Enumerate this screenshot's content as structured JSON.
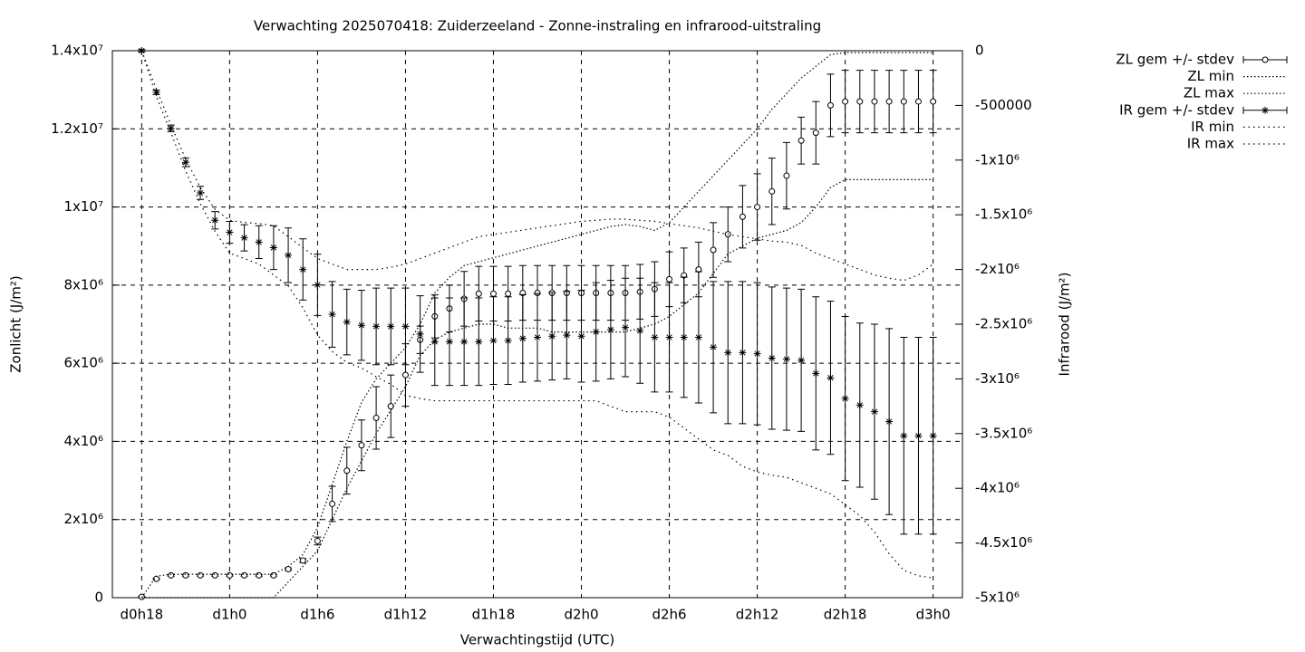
{
  "chart_data": {
    "type": "errorbar",
    "title": "Verwachting 2025070418: Zuiderzeeland - Zonne-instraling en infrarood-uitstraling",
    "x_label": "Verwachtingstijd (UTC)",
    "y_label": "Zonlicht (J/m²)",
    "y2_label": "Infrarood (J/m²)",
    "grid": true,
    "legend": "outside-right",
    "xlim": [
      16,
      74
    ],
    "xticks": [
      {
        "value": 18,
        "label": "d0h18"
      },
      {
        "value": 24,
        "label": "d1h0"
      },
      {
        "value": 30,
        "label": "d1h6"
      },
      {
        "value": 36,
        "label": "d1h12"
      },
      {
        "value": 42,
        "label": "d1h18"
      },
      {
        "value": 48,
        "label": "d2h0"
      },
      {
        "value": 54,
        "label": "d2h6"
      },
      {
        "value": 60,
        "label": "d2h12"
      },
      {
        "value": 66,
        "label": "d2h18"
      },
      {
        "value": 72,
        "label": "d3h0"
      }
    ],
    "ylim": [
      0,
      14000000
    ],
    "yticks": [
      0,
      {
        "value": 2000000,
        "label": "2x10⁶"
      },
      {
        "value": 4000000,
        "label": "4x10⁶"
      },
      {
        "value": 6000000,
        "label": "6x10⁶"
      },
      {
        "value": 8000000,
        "label": "8x10⁶"
      },
      {
        "value": 10000000,
        "label": "1x10⁷"
      },
      {
        "value": 12000000,
        "label": "1.2x10⁷"
      },
      {
        "value": 14000000,
        "label": "1.4x10⁷"
      }
    ],
    "y2lim": [
      -5000000,
      0
    ],
    "y2ticks": [
      0,
      -500000,
      {
        "value": -1000000,
        "label": "-1x10⁶"
      },
      {
        "value": -1500000,
        "label": "-1.5x10⁶"
      },
      {
        "value": -2000000,
        "label": "-2x10⁶"
      },
      {
        "value": -2500000,
        "label": "-2.5x10⁶"
      },
      {
        "value": -3000000,
        "label": "-3x10⁶"
      },
      {
        "value": -3500000,
        "label": "-3.5x10⁶"
      },
      {
        "value": -4000000,
        "label": "-4x10⁶"
      },
      {
        "value": -4500000,
        "label": "-4.5x10⁶"
      },
      {
        "value": -5000000,
        "label": "-5x10⁶"
      }
    ],
    "x": [
      18,
      19,
      20,
      21,
      22,
      23,
      24,
      25,
      26,
      27,
      28,
      29,
      30,
      31,
      32,
      33,
      34,
      35,
      36,
      37,
      38,
      39,
      40,
      41,
      42,
      43,
      44,
      45,
      46,
      47,
      48,
      49,
      50,
      51,
      52,
      53,
      54,
      55,
      56,
      57,
      58,
      59,
      60,
      61,
      62,
      63,
      64,
      65,
      66,
      67,
      68,
      69,
      70,
      71,
      72
    ],
    "series": [
      {
        "name": "ZL gem +/- stdev",
        "color": "#000000",
        "marker": "circle",
        "values": [
          20000,
          480000,
          570000,
          570000,
          570000,
          570000,
          570000,
          570000,
          570000,
          570000,
          730000,
          950000,
          1450000,
          2400000,
          3250000,
          3900000,
          4600000,
          4900000,
          5700000,
          6600000,
          7200000,
          7400000,
          7650000,
          7780000,
          7780000,
          7780000,
          7800000,
          7800000,
          7800000,
          7800000,
          7800000,
          7800000,
          7800000,
          7800000,
          7830000,
          7900000,
          8150000,
          8250000,
          8400000,
          8900000,
          9300000,
          9750000,
          10000000,
          10400000,
          10800000,
          11700000,
          11900000,
          12600000,
          12700000,
          12700000,
          12700000,
          12700000,
          12700000,
          12700000,
          12700000
        ],
        "errors": [
          10000,
          20000,
          20000,
          20000,
          20000,
          20000,
          20000,
          20000,
          20000,
          20000,
          30000,
          50000,
          100000,
          450000,
          600000,
          650000,
          800000,
          800000,
          800000,
          350000,
          550000,
          600000,
          700000,
          700000,
          700000,
          700000,
          700000,
          700000,
          700000,
          700000,
          700000,
          700000,
          700000,
          700000,
          700000,
          700000,
          700000,
          700000,
          700000,
          700000,
          700000,
          800000,
          850000,
          850000,
          850000,
          600000,
          800000,
          800000,
          800000,
          800000,
          800000,
          800000,
          800000,
          800000,
          800000
        ]
      },
      {
        "name": "ZL min",
        "color": "#000000",
        "values": [
          0,
          0,
          0,
          0,
          0,
          0,
          0,
          0,
          0,
          0,
          400000,
          800000,
          1200000,
          2000000,
          2800000,
          3500000,
          4200000,
          4800000,
          5400000,
          6200000,
          6600000,
          6800000,
          6900000,
          7000000,
          7000000,
          6900000,
          6900000,
          6900000,
          6800000,
          6800000,
          6800000,
          6800000,
          6800000,
          6800000,
          6900000,
          7000000,
          7200000,
          7500000,
          7800000,
          8300000,
          8800000,
          9000000,
          9200000,
          9300000,
          9400000,
          9600000,
          10000000,
          10500000,
          10700000,
          10700000,
          10700000,
          10700000,
          10700000,
          10700000,
          10700000
        ]
      },
      {
        "name": "ZL max",
        "color": "#000000",
        "values": [
          0,
          550000,
          600000,
          600000,
          600000,
          600000,
          600000,
          600000,
          600000,
          600000,
          800000,
          1100000,
          1800000,
          2900000,
          4000000,
          5000000,
          5600000,
          6000000,
          6400000,
          7000000,
          7800000,
          8200000,
          8500000,
          8600000,
          8700000,
          8800000,
          8900000,
          9000000,
          9100000,
          9200000,
          9300000,
          9400000,
          9500000,
          9550000,
          9500000,
          9400000,
          9600000,
          10000000,
          10400000,
          10800000,
          11200000,
          11600000,
          12000000,
          12500000,
          12900000,
          13300000,
          13600000,
          13900000,
          13950000,
          13950000,
          13950000,
          13950000,
          13950000,
          13950000,
          13950000
        ]
      },
      {
        "name": "IR gem +/- stdev",
        "color": "#000000",
        "marker": "asterisk",
        "axis": "y2",
        "values": [
          0,
          -380000,
          -710000,
          -1020000,
          -1300000,
          -1550000,
          -1660000,
          -1710000,
          -1750000,
          -1800000,
          -1870000,
          -2000000,
          -2140000,
          -2410000,
          -2480000,
          -2510000,
          -2520000,
          -2520000,
          -2520000,
          -2590000,
          -2660000,
          -2660000,
          -2660000,
          -2660000,
          -2650000,
          -2650000,
          -2630000,
          -2620000,
          -2610000,
          -2600000,
          -2610000,
          -2570000,
          -2550000,
          -2530000,
          -2560000,
          -2620000,
          -2620000,
          -2620000,
          -2620000,
          -2710000,
          -2760000,
          -2760000,
          -2770000,
          -2810000,
          -2820000,
          -2830000,
          -2950000,
          -2990000,
          -3180000,
          -3240000,
          -3300000,
          -3390000,
          -3520000,
          -3520000,
          -3520000
        ],
        "errors": [
          10000,
          20000,
          30000,
          40000,
          60000,
          80000,
          100000,
          120000,
          150000,
          200000,
          250000,
          280000,
          280000,
          300000,
          300000,
          320000,
          350000,
          350000,
          350000,
          350000,
          400000,
          400000,
          400000,
          400000,
          400000,
          400000,
          400000,
          400000,
          400000,
          400000,
          420000,
          450000,
          450000,
          450000,
          480000,
          500000,
          500000,
          550000,
          600000,
          600000,
          650000,
          650000,
          650000,
          650000,
          650000,
          650000,
          700000,
          700000,
          750000,
          750000,
          800000,
          850000,
          900000,
          900000,
          900000
        ]
      },
      {
        "name": "IR min",
        "color": "#000000",
        "axis": "y2",
        "values": [
          0,
          -420000,
          -750000,
          -1100000,
          -1400000,
          -1650000,
          -1850000,
          -1900000,
          -1950000,
          -2050000,
          -2150000,
          -2350000,
          -2600000,
          -2750000,
          -2850000,
          -2900000,
          -2980000,
          -3050000,
          -3150000,
          -3180000,
          -3200000,
          -3200000,
          -3200000,
          -3200000,
          -3200000,
          -3200000,
          -3200000,
          -3200000,
          -3200000,
          -3200000,
          -3200000,
          -3200000,
          -3250000,
          -3300000,
          -3300000,
          -3300000,
          -3350000,
          -3450000,
          -3550000,
          -3650000,
          -3700000,
          -3800000,
          -3850000,
          -3880000,
          -3900000,
          -3950000,
          -4000000,
          -4050000,
          -4150000,
          -4250000,
          -4400000,
          -4600000,
          -4750000,
          -4800000,
          -4820000
        ]
      },
      {
        "name": "IR max",
        "color": "#000000",
        "axis": "y2",
        "values": [
          0,
          -350000,
          -680000,
          -990000,
          -1250000,
          -1450000,
          -1550000,
          -1570000,
          -1580000,
          -1600000,
          -1700000,
          -1800000,
          -1900000,
          -1950000,
          -2000000,
          -2000000,
          -2000000,
          -1980000,
          -1950000,
          -1900000,
          -1850000,
          -1800000,
          -1750000,
          -1700000,
          -1680000,
          -1660000,
          -1640000,
          -1620000,
          -1600000,
          -1580000,
          -1560000,
          -1550000,
          -1540000,
          -1540000,
          -1550000,
          -1560000,
          -1580000,
          -1600000,
          -1620000,
          -1650000,
          -1680000,
          -1700000,
          -1720000,
          -1740000,
          -1750000,
          -1780000,
          -1850000,
          -1900000,
          -1950000,
          -2000000,
          -2050000,
          -2080000,
          -2100000,
          -2050000,
          -1950000
        ]
      }
    ]
  }
}
